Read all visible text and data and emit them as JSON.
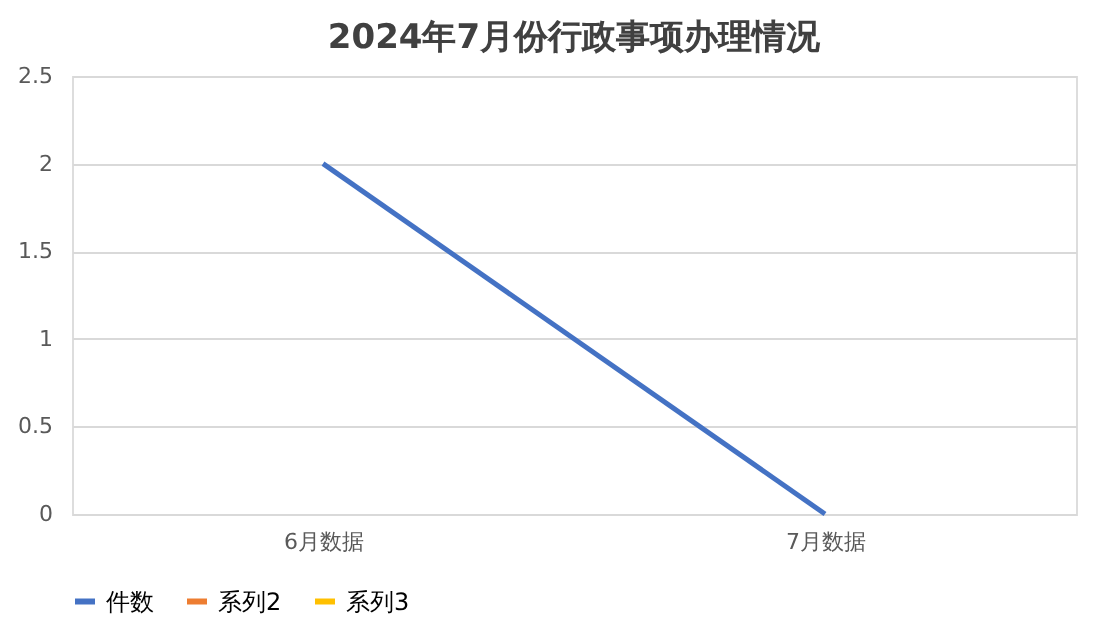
{
  "chart_data": {
    "type": "line",
    "title": "2024年7月份行政事项办理情况",
    "categories": [
      "6月数据",
      "7月数据"
    ],
    "series": [
      {
        "name": "件数",
        "color": "#4472c4",
        "values": [
          2,
          0
        ]
      },
      {
        "name": "系列2",
        "color": "#ed7d31",
        "values": [
          null,
          null
        ]
      },
      {
        "name": "系列3",
        "color": "#ffc000",
        "values": [
          null,
          null
        ]
      }
    ],
    "ylim": [
      0,
      2.5
    ],
    "yticks": [
      0,
      0.5,
      1,
      1.5,
      2,
      2.5
    ],
    "grid": "y",
    "legend": "bottom",
    "marker": "none",
    "line_style": "solid"
  }
}
